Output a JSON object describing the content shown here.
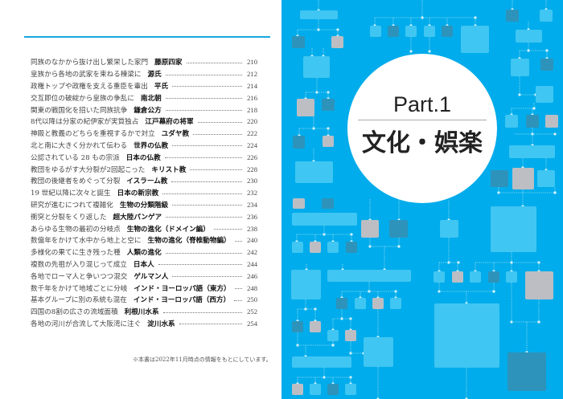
{
  "toc": [
    {
      "desc": "同族のなかから抜け出し繁栄した家門",
      "title": "藤原四家",
      "page": "210"
    },
    {
      "desc": "皇族から各地の武家を束ねる棟梁に",
      "title": "源氏",
      "page": "212"
    },
    {
      "desc": "政権トップや政権を支える重臣を輩出",
      "title": "平氏",
      "page": "214"
    },
    {
      "desc": "交互即位の破綻から皇族の争乱に",
      "title": "南北朝",
      "page": "216"
    },
    {
      "desc": "関東の戦国化を招いた同族抗争",
      "title": "鎌倉公方",
      "page": "218"
    },
    {
      "desc": "8代以降は分家の紀伊家が実質独占",
      "title": "江戸幕府の将軍",
      "page": "220"
    },
    {
      "desc": "神殿と教義のどちらを重視するかで対立",
      "title": "ユダヤ教",
      "page": "222"
    },
    {
      "desc": "北と南に大きく分かれて伝わる",
      "title": "世界の仏教",
      "page": "224"
    },
    {
      "desc": "公認されている 28 もの宗派",
      "title": "日本の仏教",
      "page": "226"
    },
    {
      "desc": "教団をゆるがす大分裂が2回起こった",
      "title": "キリスト教",
      "page": "228"
    },
    {
      "desc": "教団の後継者をめぐって分裂",
      "title": "イスラーム教",
      "page": "230"
    },
    {
      "desc": "19 世紀以降に次々と誕生",
      "title": "日本の新宗教",
      "page": "232"
    },
    {
      "desc": "研究が進むにつれて複雑化",
      "title": "生物の分類階級",
      "page": "234"
    },
    {
      "desc": "衝突と分裂をくり返した",
      "title": "超大陸パンゲア",
      "page": "236"
    },
    {
      "desc": "あらゆる生物の最初の分岐点",
      "title": "生物の進化（ドメイン編）",
      "page": "238"
    },
    {
      "desc": "数億年をかけて水中から地上と空に",
      "title": "生物の進化（脊椎動物編）",
      "page": "240"
    },
    {
      "desc": "多様化の果てに生き残った種",
      "title": "人類の進化",
      "page": "242"
    },
    {
      "desc": "複数の先祖が入り混じって成立",
      "title": "日本人",
      "page": "244"
    },
    {
      "desc": "各地でローマ人と争いつつ混交",
      "title": "ゲルマン人",
      "page": "246"
    },
    {
      "desc": "数千年をかけて地域ごとに分岐",
      "title": "インド・ヨーロッパ語（東方）",
      "page": "248"
    },
    {
      "desc": "基本グループに別の系統も混在",
      "title": "インド・ヨーロッパ語（西方）",
      "page": "250"
    },
    {
      "desc": "四国の8割の広さの流域面積",
      "title": "利根川水系",
      "page": "252"
    },
    {
      "desc": "各地の河川が合流して大阪湾に注ぐ",
      "title": "淀川水系",
      "page": "254"
    }
  ],
  "note": "※本書は2022年11月時点の情報をもとにしています。",
  "part": {
    "label": "Part.1",
    "category": "文化・娯楽"
  },
  "colors": {
    "background_blue": "#00aceb",
    "box_light": "#40c6f2",
    "box_dark": "#2e93ba",
    "box_grey": "#bcbec4",
    "accent_line": "#1aa7e0"
  }
}
